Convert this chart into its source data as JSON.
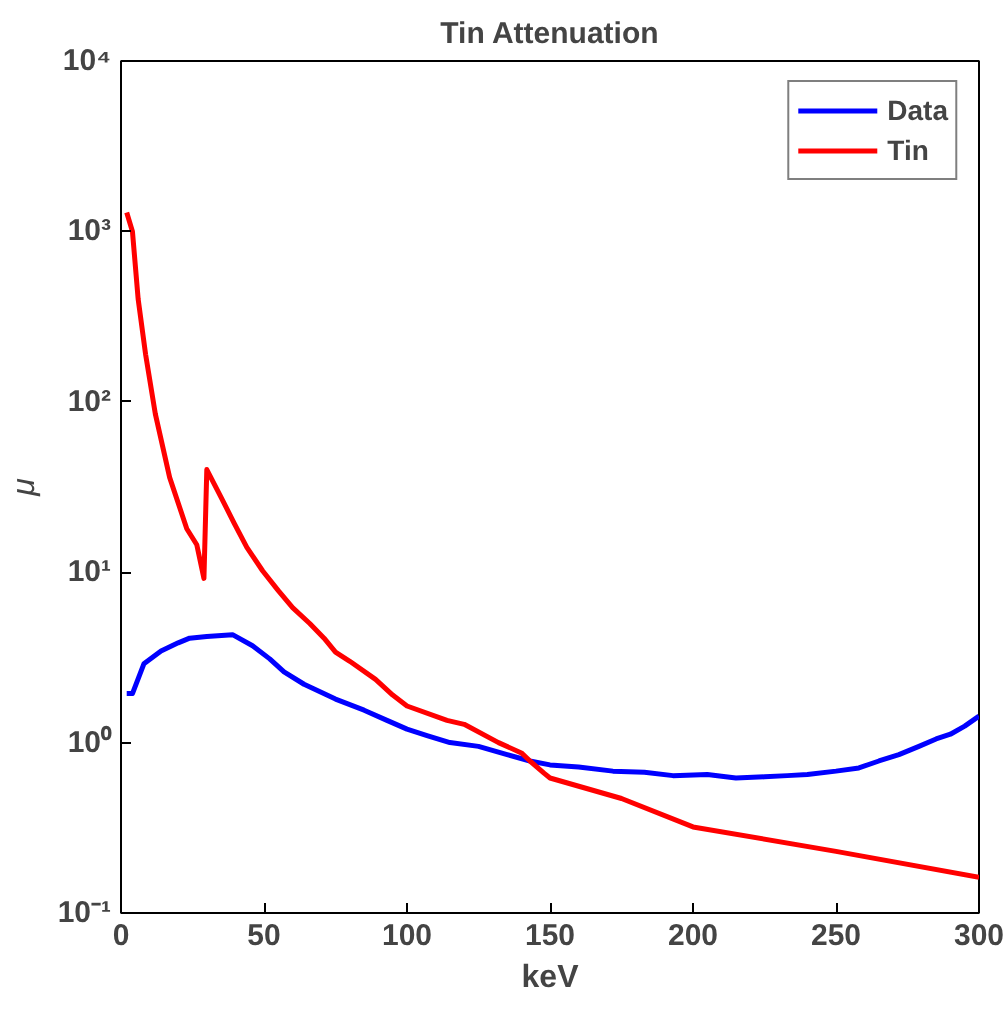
{
  "chart_data": {
    "type": "line",
    "title": "Tin Attenuation",
    "xlabel": "keV",
    "ylabel": "μ",
    "log": "y",
    "xlim": [
      0,
      300
    ],
    "xticks": [
      0,
      50,
      100,
      150,
      200,
      250,
      300
    ],
    "ylim": [
      0.1,
      10000
    ],
    "yticks": [
      {
        "value": 0.1,
        "label": "10⁻¹"
      },
      {
        "value": 1,
        "label": "10⁰"
      },
      {
        "value": 10,
        "label": "10¹"
      },
      {
        "value": 100,
        "label": "10²"
      },
      {
        "value": 1000,
        "label": "10³"
      },
      {
        "value": 10000,
        "label": "10⁴"
      }
    ],
    "legend": "top right",
    "grid": false,
    "line_style": "solid",
    "series": [
      {
        "name": "Data",
        "color": "#0000ff",
        "x": [
          2,
          4,
          8,
          14,
          20,
          24,
          30,
          39,
          46,
          52,
          57,
          64,
          75,
          85,
          93,
          100,
          107,
          115,
          125,
          135,
          143,
          150,
          160,
          172,
          183,
          193,
          205,
          215,
          225,
          233,
          240,
          250,
          258,
          265,
          272,
          279,
          285,
          290,
          295,
          300
        ],
        "values": [
          1.94,
          1.94,
          2.9,
          3.45,
          3.85,
          4.1,
          4.2,
          4.3,
          3.7,
          3.1,
          2.6,
          2.2,
          1.8,
          1.55,
          1.35,
          1.2,
          1.1,
          1.0,
          0.95,
          0.85,
          0.78,
          0.74,
          0.72,
          0.68,
          0.67,
          0.64,
          0.65,
          0.62,
          0.63,
          0.64,
          0.65,
          0.68,
          0.71,
          0.78,
          0.85,
          0.95,
          1.05,
          1.12,
          1.25,
          1.43
        ]
      },
      {
        "name": "Tin",
        "color": "#ff0000",
        "x": [
          2,
          4,
          6,
          8.6,
          12,
          17,
          23,
          26.5,
          29,
          30,
          35,
          39.5,
          44,
          49.5,
          55,
          60,
          66,
          71,
          75,
          80,
          89,
          95,
          100,
          114,
          120,
          132,
          140,
          143,
          148,
          150,
          175,
          200,
          250,
          300
        ],
        "values": [
          1290,
          1000,
          400,
          190,
          85,
          36,
          18,
          14.5,
          9.2,
          40,
          27.5,
          19.5,
          14,
          10.2,
          7.8,
          6.2,
          5,
          4.1,
          3.4,
          3.0,
          2.35,
          1.9,
          1.64,
          1.35,
          1.28,
          1.0,
          0.87,
          0.78,
          0.66,
          0.62,
          0.47,
          0.32,
          0.23,
          0.162
        ]
      }
    ]
  }
}
